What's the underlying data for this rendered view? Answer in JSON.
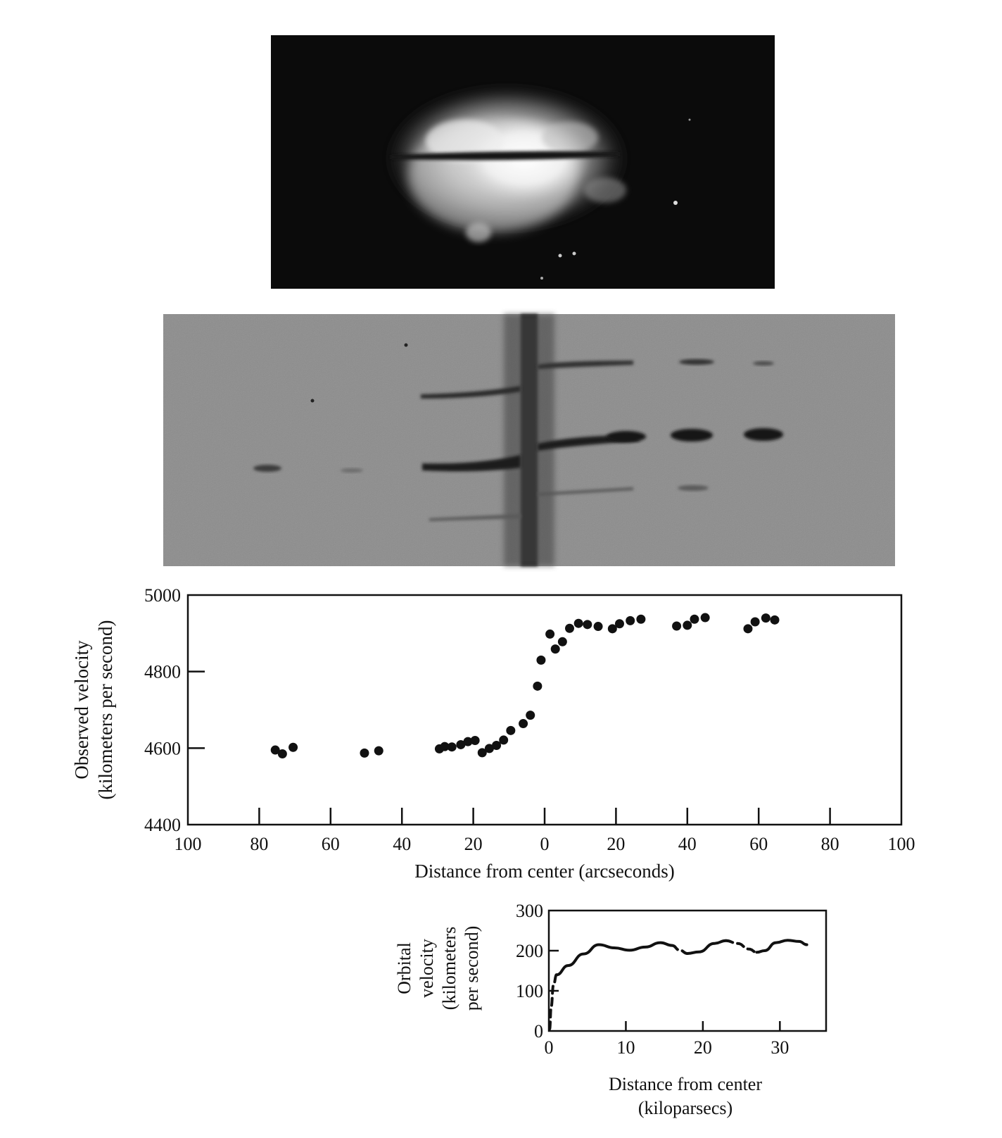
{
  "chart_data": [
    {
      "type": "photo",
      "description": "Galaxy image with slit"
    },
    {
      "type": "photo",
      "description": "Spectrum image"
    },
    {
      "type": "scatter",
      "xlabel": "Distance from center (arcseconds)",
      "ylabel_lines": [
        "Observed velocity",
        "(kilometers per second)"
      ],
      "xlim": [
        -100,
        100
      ],
      "ylim": [
        4400,
        5000
      ],
      "x_tick_values": [
        -100,
        -80,
        -60,
        -40,
        -20,
        0,
        20,
        40,
        60,
        80,
        100
      ],
      "x_tick_labels": [
        "100",
        "80",
        "60",
        "40",
        "20",
        "0",
        "20",
        "40",
        "60",
        "80",
        "100"
      ],
      "y_tick_values": [
        4400,
        4600,
        4800,
        5000
      ],
      "y_tick_labels": [
        "4400",
        "4600",
        "4800",
        "5000"
      ],
      "points": [
        {
          "x": -75.5,
          "y": 4595
        },
        {
          "x": -73.5,
          "y": 4585
        },
        {
          "x": -70.5,
          "y": 4602
        },
        {
          "x": -50.5,
          "y": 4587
        },
        {
          "x": -46.5,
          "y": 4593
        },
        {
          "x": -29.5,
          "y": 4598
        },
        {
          "x": -28,
          "y": 4604
        },
        {
          "x": -26,
          "y": 4603
        },
        {
          "x": -23.5,
          "y": 4609
        },
        {
          "x": -21.5,
          "y": 4617
        },
        {
          "x": -19.5,
          "y": 4620
        },
        {
          "x": -17.5,
          "y": 4588
        },
        {
          "x": -15.5,
          "y": 4599
        },
        {
          "x": -13.5,
          "y": 4607
        },
        {
          "x": -11.5,
          "y": 4621
        },
        {
          "x": -9.5,
          "y": 4646
        },
        {
          "x": -6,
          "y": 4664
        },
        {
          "x": -4,
          "y": 4686
        },
        {
          "x": -2,
          "y": 4762
        },
        {
          "x": -1,
          "y": 4830
        },
        {
          "x": 1.5,
          "y": 4898
        },
        {
          "x": 3,
          "y": 4859
        },
        {
          "x": 5,
          "y": 4878
        },
        {
          "x": 7,
          "y": 4913
        },
        {
          "x": 9.5,
          "y": 4926
        },
        {
          "x": 12,
          "y": 4923
        },
        {
          "x": 15,
          "y": 4918
        },
        {
          "x": 19,
          "y": 4912
        },
        {
          "x": 21,
          "y": 4925
        },
        {
          "x": 24,
          "y": 4933
        },
        {
          "x": 27,
          "y": 4937
        },
        {
          "x": 37,
          "y": 4919
        },
        {
          "x": 40,
          "y": 4921
        },
        {
          "x": 42,
          "y": 4937
        },
        {
          "x": 45,
          "y": 4941
        },
        {
          "x": 57,
          "y": 4912
        },
        {
          "x": 59,
          "y": 4930
        },
        {
          "x": 62,
          "y": 4940
        },
        {
          "x": 64.5,
          "y": 4935
        }
      ]
    },
    {
      "type": "line",
      "xlabel_lines": [
        "Distance from center",
        "(kiloparsecs)"
      ],
      "ylabel_lines": [
        "Orbital",
        "velocity",
        "(kilometers",
        "per second)"
      ],
      "xlim": [
        0,
        36
      ],
      "ylim": [
        0,
        300
      ],
      "x_tick_values": [
        0,
        10,
        20,
        30
      ],
      "x_tick_labels": [
        "0",
        "10",
        "20",
        "30"
      ],
      "y_tick_values": [
        0,
        100,
        200,
        300
      ],
      "y_tick_labels": [
        "0",
        "100",
        "200",
        "300"
      ],
      "segments": [
        {
          "style": "dashed",
          "points": [
            [
              0.1,
              5
            ],
            [
              0.3,
              60
            ],
            [
              0.6,
              115
            ],
            [
              1.0,
              140
            ]
          ]
        },
        {
          "style": "solid",
          "points": [
            [
              1.0,
              140
            ],
            [
              2.5,
              163
            ],
            [
              4.5,
              192
            ],
            [
              6.5,
              215
            ],
            [
              8.5,
              207
            ],
            [
              10.5,
              201
            ],
            [
              12.5,
              209
            ],
            [
              14.5,
              220
            ],
            [
              16,
              213
            ]
          ]
        },
        {
          "style": "dashed",
          "points": [
            [
              16,
              213
            ],
            [
              17,
              201
            ],
            [
              18,
              193
            ]
          ]
        },
        {
          "style": "solid",
          "points": [
            [
              18,
              193
            ],
            [
              19.5,
              197
            ],
            [
              21.5,
              218
            ],
            [
              23,
              225
            ]
          ]
        },
        {
          "style": "dashed",
          "points": [
            [
              23,
              225
            ],
            [
              24.5,
              218
            ],
            [
              26,
              204
            ],
            [
              27,
              196
            ]
          ]
        },
        {
          "style": "solid",
          "points": [
            [
              27,
              196
            ],
            [
              28,
              200
            ],
            [
              29.5,
              220
            ],
            [
              31,
              226
            ],
            [
              32.5,
              223
            ],
            [
              33.5,
              215
            ]
          ]
        }
      ]
    }
  ]
}
